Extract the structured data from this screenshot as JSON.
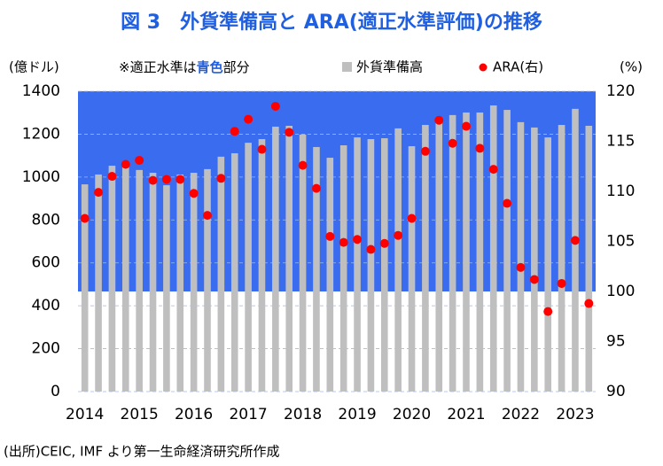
{
  "chart_data": {
    "type": "bar_dot",
    "title": "図 3　外貨準備高と ARA(適正水準評価)の推移",
    "y_axis_label": "(億ドル)",
    "y2_axis_label": "(%)",
    "annotation": [
      "※適正水準は",
      "青色",
      "部分"
    ],
    "annotation_highlight_color": "#1f5fe0",
    "source": "(出所)CEIC, IMF より第一生命経済研究所作成",
    "categories": [
      "2014",
      null,
      null,
      null,
      "2015",
      null,
      null,
      null,
      "2016",
      null,
      null,
      null,
      "2017",
      null,
      null,
      null,
      "2018",
      null,
      null,
      null,
      "2019",
      null,
      null,
      null,
      "2020",
      null,
      null,
      null,
      "2021",
      null,
      null,
      null,
      "2022",
      null,
      null,
      null,
      "2023",
      null
    ],
    "series": [
      {
        "name": "外貨準備高",
        "color": "#bfbfbf",
        "kind": "bar",
        "values": [
          966,
          1012,
          1053,
          1070,
          1033,
          1020,
          962,
          1012,
          1020,
          1037,
          1095,
          1111,
          1160,
          1177,
          1235,
          1239,
          1198,
          1140,
          1090,
          1148,
          1185,
          1177,
          1181,
          1227,
          1144,
          1243,
          1268,
          1289,
          1301,
          1301,
          1334,
          1313,
          1256,
          1231,
          1185,
          1243,
          1318,
          1239
        ]
      },
      {
        "name": "ARA(右)",
        "color": "#ff0000",
        "kind": "dot",
        "axis": "y2",
        "values": [
          107.3,
          109.9,
          111.5,
          112.7,
          113.1,
          111.1,
          111.2,
          111.2,
          109.8,
          107.6,
          111.3,
          116.0,
          117.2,
          114.2,
          118.5,
          115.9,
          112.6,
          110.3,
          105.5,
          104.9,
          105.2,
          104.2,
          104.8,
          105.6,
          107.3,
          114.0,
          117.1,
          114.8,
          116.5,
          114.3,
          112.2,
          108.8,
          102.4,
          101.2,
          98.0,
          100.8,
          105.1,
          98.8
        ]
      }
    ],
    "ylim": [
      0,
      1400
    ],
    "yticks": [
      0,
      200,
      400,
      600,
      800,
      1000,
      1200,
      1400
    ],
    "y2lim": [
      90,
      120
    ],
    "y2ticks": [
      90,
      95,
      100,
      105,
      110,
      115,
      120
    ],
    "shaded_y2_range": [
      100,
      120
    ],
    "shade_color": "#3a6cf0",
    "grid": true
  }
}
